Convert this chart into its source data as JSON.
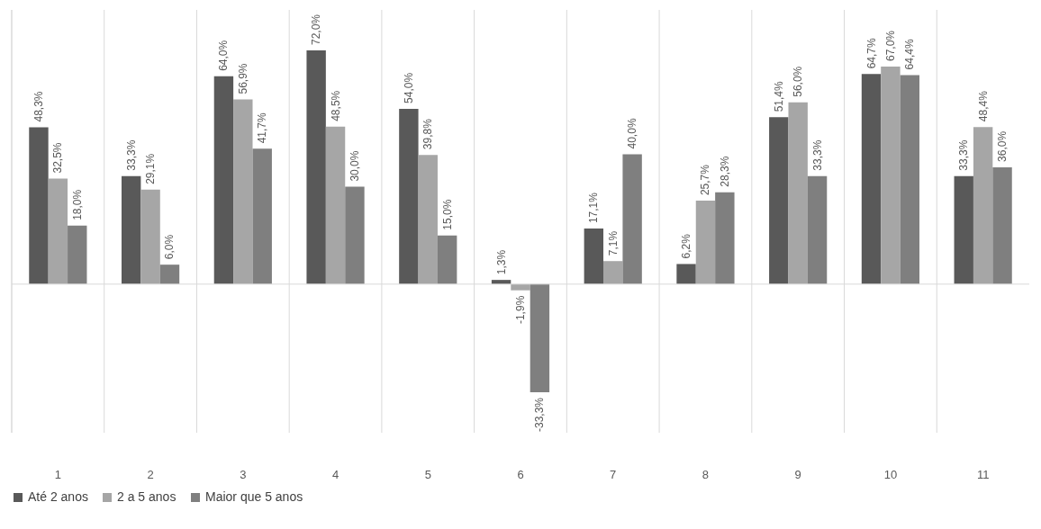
{
  "chart_data": {
    "type": "bar",
    "categories": [
      "1",
      "2",
      "3",
      "4",
      "5",
      "6",
      "7",
      "8",
      "9",
      "10",
      "11"
    ],
    "series": [
      {
        "name": "Até 2 anos",
        "color": "#595959",
        "values": [
          48.3,
          33.3,
          64.0,
          72.0,
          54.0,
          1.3,
          17.1,
          6.2,
          51.4,
          64.7,
          33.3
        ],
        "value_labels": [
          "48,3%",
          "33,3%",
          "64,0%",
          "72,0%",
          "54,0%",
          "1,3%",
          "17,1%",
          "6,2%",
          "51,4%",
          "64,7%",
          "33,3%"
        ]
      },
      {
        "name": "2 a 5 anos",
        "color": "#a6a6a6",
        "values": [
          32.5,
          29.1,
          56.9,
          48.5,
          39.8,
          -1.9,
          7.1,
          25.7,
          56.0,
          67.0,
          48.4
        ],
        "value_labels": [
          "32,5%",
          "29,1%",
          "56,9%",
          "48,5%",
          "39,8%",
          "-1,9%",
          "7,1%",
          "25,7%",
          "56,0%",
          "67,0%",
          "48,4%"
        ]
      },
      {
        "name": "Maior que 5 anos",
        "color": "#7f7f7f",
        "values": [
          18.0,
          6.0,
          41.7,
          30.0,
          15.0,
          -33.3,
          40.0,
          28.3,
          33.3,
          64.4,
          36.0
        ],
        "value_labels": [
          "18,0%",
          "6,0%",
          "41,7%",
          "30,0%",
          "15,0%",
          "-33,3%",
          "40,0%",
          "28,3%",
          "33,3%",
          "64,4%",
          "36,0%"
        ]
      }
    ],
    "grid": "x",
    "legend": "bottom",
    "tick_labels": "x"
  }
}
